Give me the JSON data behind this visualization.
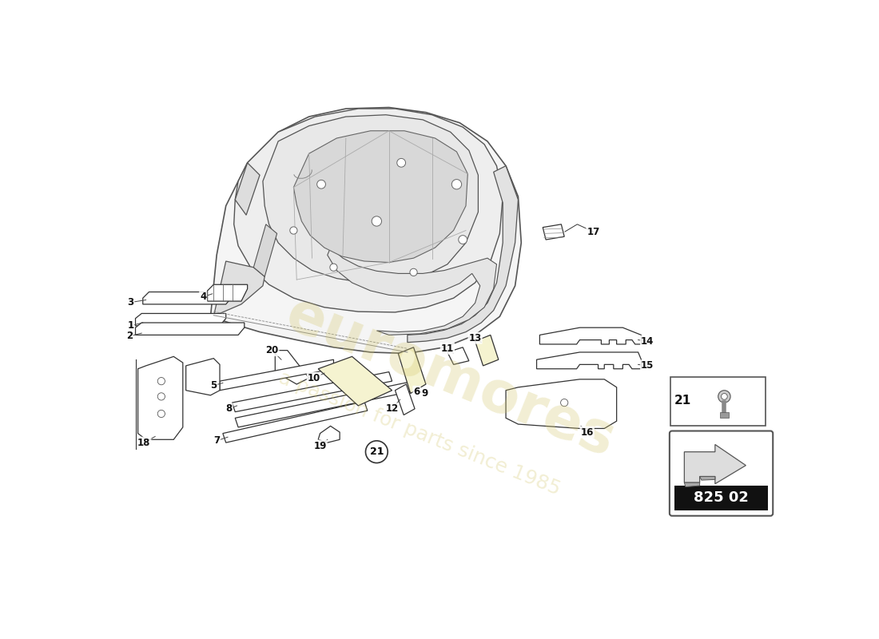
{
  "bg_color": "#ffffff",
  "part_number": "825 02",
  "watermark_lines": [
    "euromores",
    "a passion for parts since 1985"
  ],
  "watermark_color": "#d4c870",
  "line_color": "#333333",
  "part_fill": "#ffffff",
  "part_stroke": "#333333",
  "car_fill": "#f8f8f8",
  "car_stroke": "#444444"
}
